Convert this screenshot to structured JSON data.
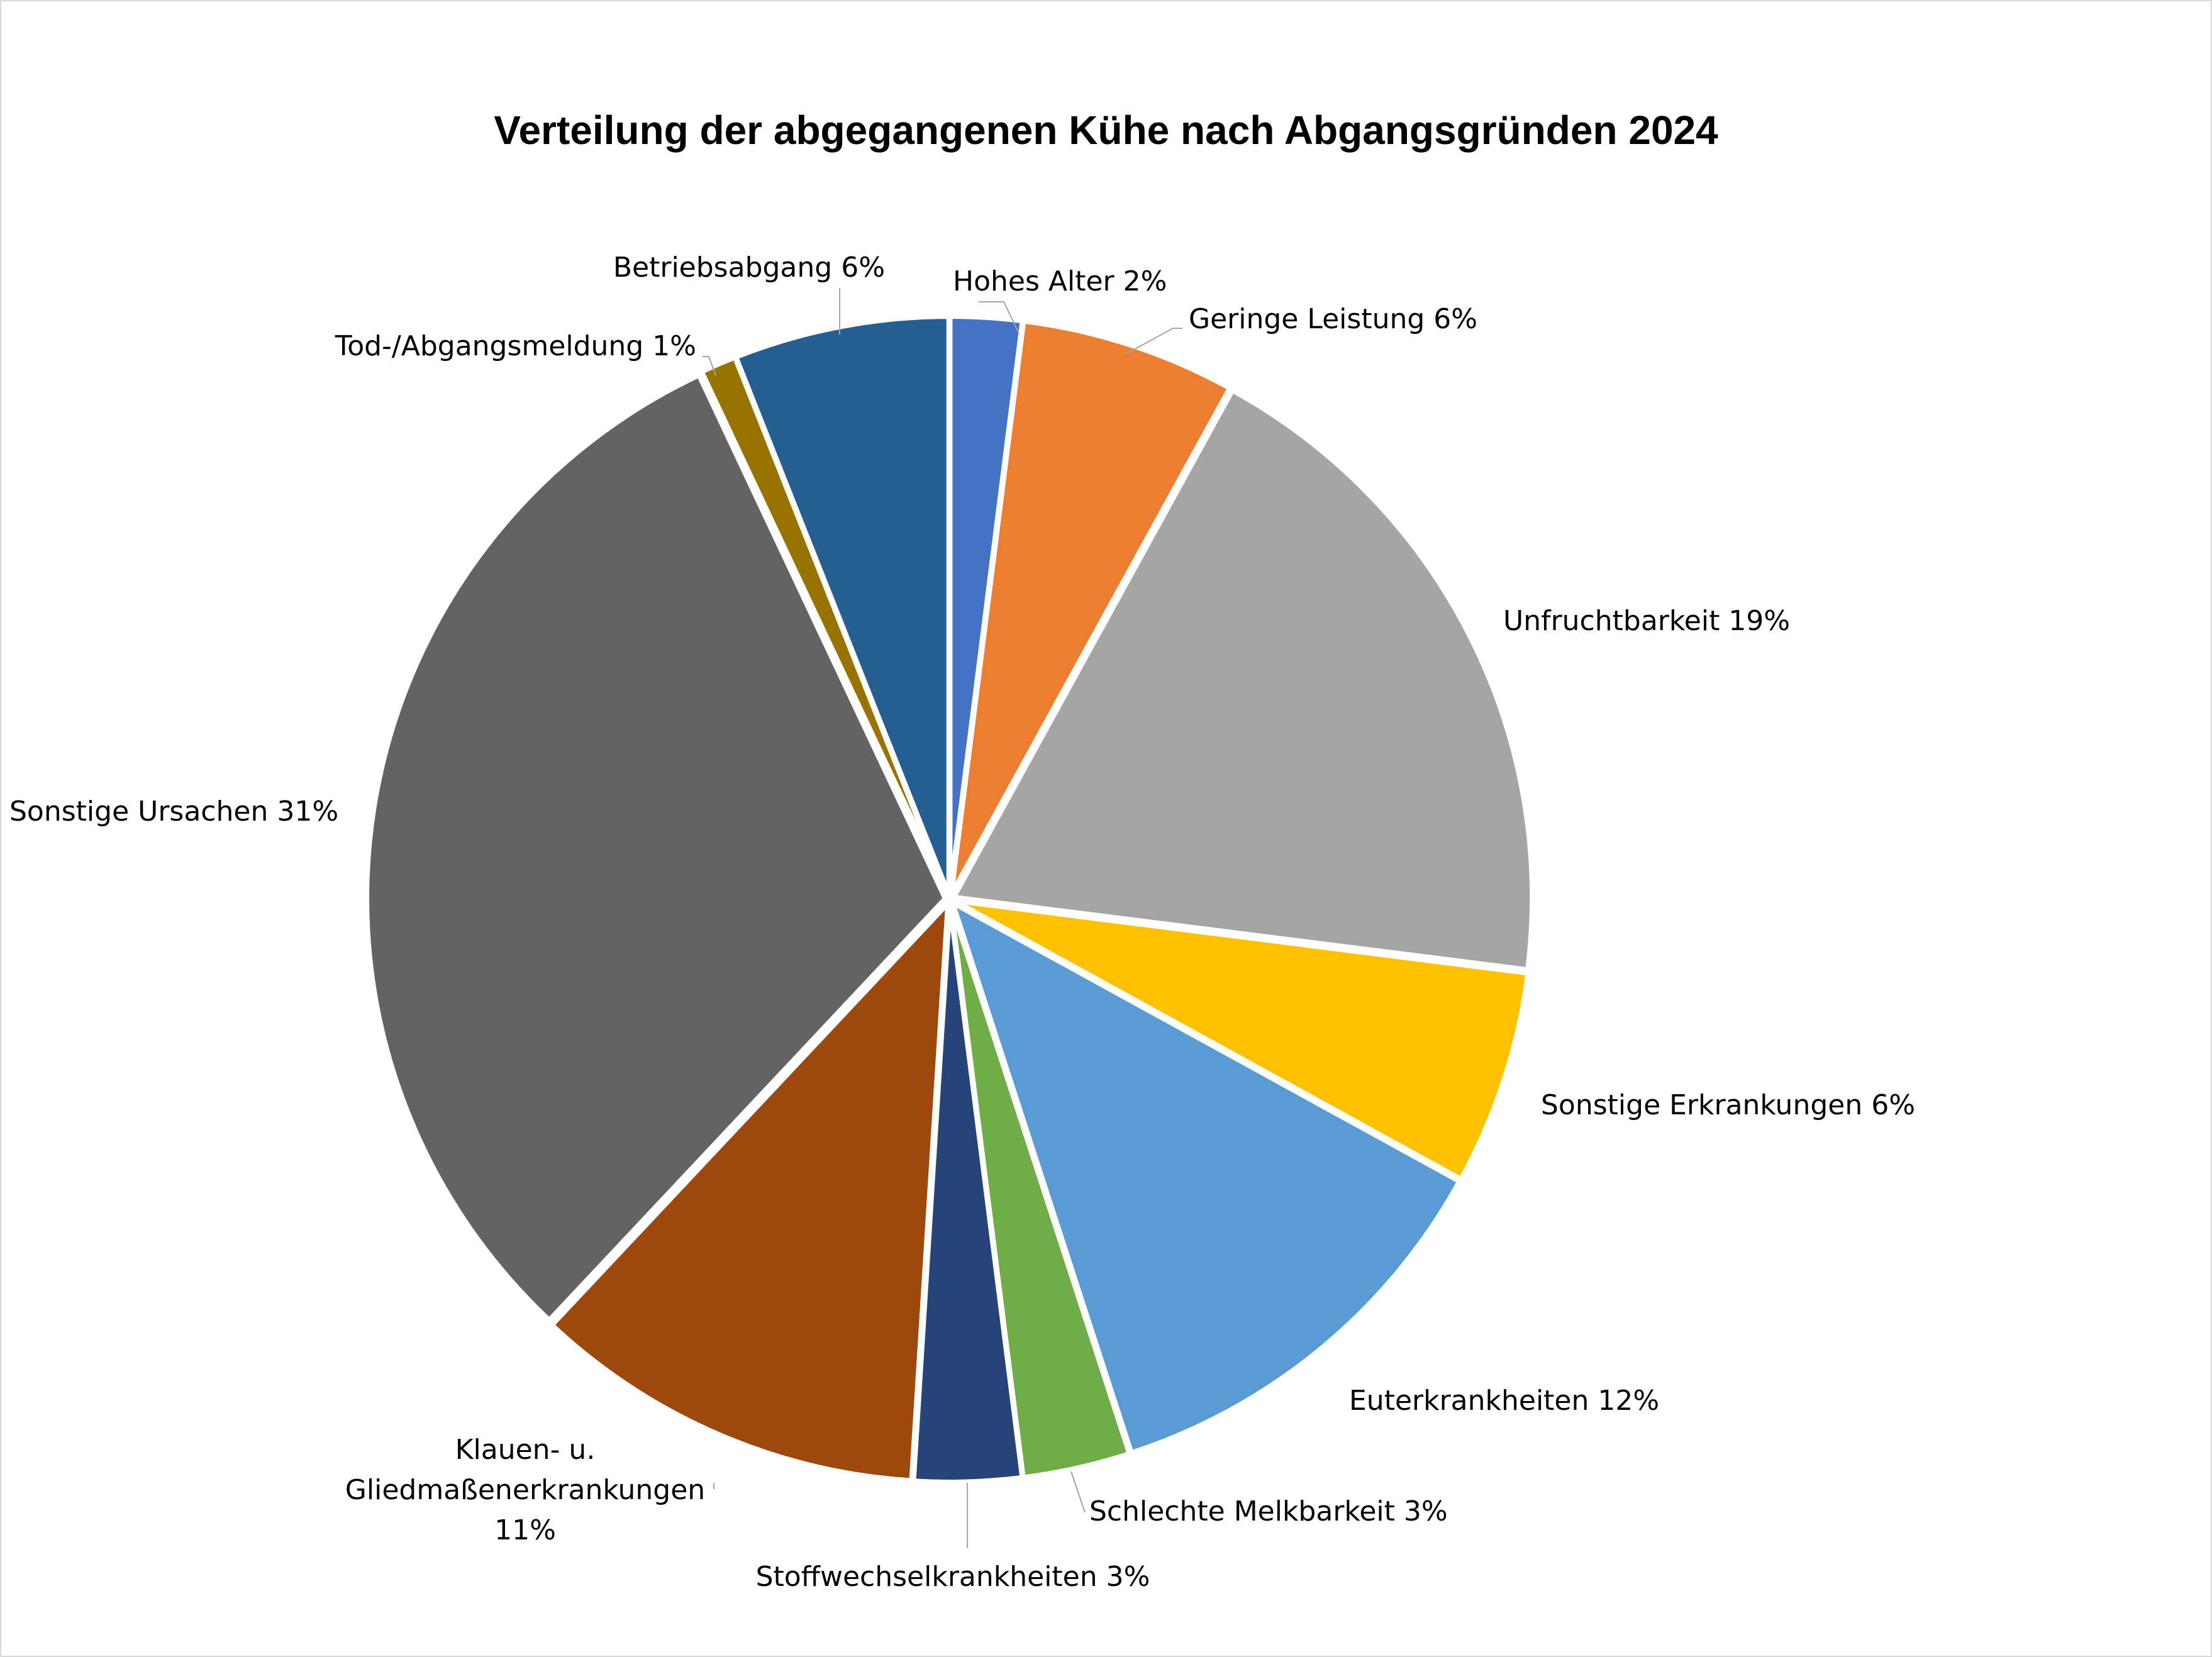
{
  "chart_data": {
    "type": "pie",
    "title": "Verteilung der abgegangenen Kühe nach Abgangsgründen 2024",
    "slices": [
      {
        "name": "Hohes Alter",
        "value": 2,
        "label_lines": [
          "Hohes Alter 2%"
        ],
        "color": "#4472c4"
      },
      {
        "name": "Geringe Leistung",
        "value": 6,
        "label_lines": [
          "Geringe Leistung  6%"
        ],
        "color": "#ed7d31"
      },
      {
        "name": "Unfruchtbarkeit",
        "value": 19,
        "label_lines": [
          "Unfruchtbarkeit 19%"
        ],
        "color": "#a5a5a5"
      },
      {
        "name": "Sonstige Erkrankungen",
        "value": 6,
        "label_lines": [
          "Sonstige Erkrankungen  6%"
        ],
        "color": "#ffc000"
      },
      {
        "name": "Euterkrankheiten",
        "value": 12,
        "label_lines": [
          "Euterkrankheiten 12%"
        ],
        "color": "#5b9bd5"
      },
      {
        "name": "Schlechte Melkbarkeit",
        "value": 3,
        "label_lines": [
          "Schlechte Melkbarkeit 3%"
        ],
        "color": "#70ad47"
      },
      {
        "name": "Stoffwechselkrankheiten",
        "value": 3,
        "label_lines": [
          "Stoffwechselkrankheiten 3%"
        ],
        "color": "#264478"
      },
      {
        "name": "Klauen- u. Gliedmaßenerkrankungen",
        "value": 11,
        "label_lines": [
          "Klauen- u.",
          "Gliedmaßenerkrankungen",
          "11%"
        ],
        "color": "#9e480e"
      },
      {
        "name": "Sonstige Ursachen",
        "value": 31,
        "label_lines": [
          "Sonstige Ursachen 31%"
        ],
        "color": "#636363"
      },
      {
        "name": "Tod-/Abgangsmeldung",
        "value": 1,
        "label_lines": [
          "Tod-/Abgangsmeldung 1%"
        ],
        "color": "#997300"
      },
      {
        "name": "Betriebsabgang",
        "value": 6,
        "label_lines": [
          "Betriebsabgang 6%"
        ],
        "color": "#255e91"
      }
    ]
  }
}
